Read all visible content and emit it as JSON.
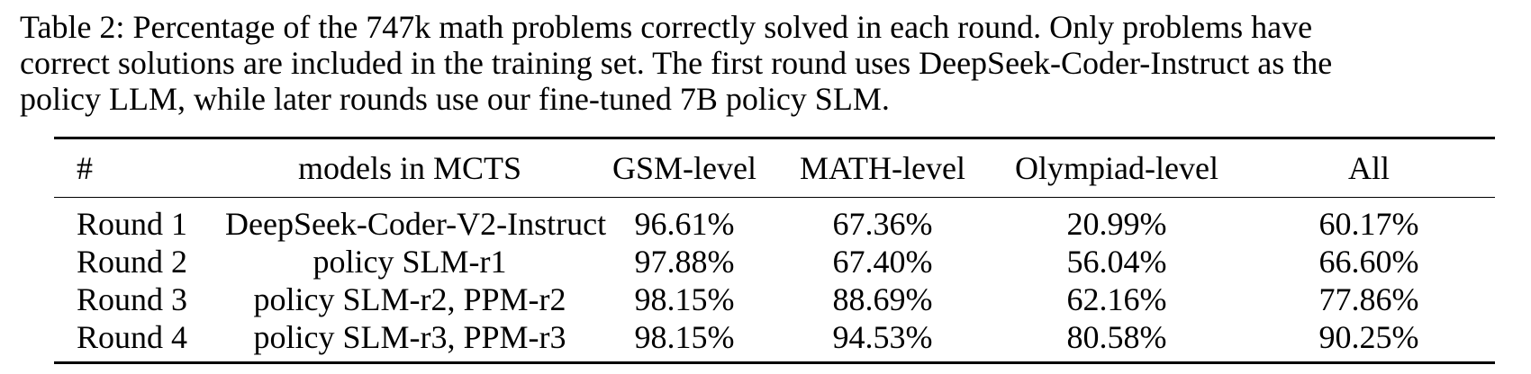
{
  "caption": {
    "lines": [
      "Table 2: Percentage of the 747k math problems correctly solved in each round. Only problems have",
      "correct solutions are included in the training set. The first round uses DeepSeek-Coder-Instruct as the",
      "policy LLM, while later rounds use our fine-tuned 7B policy SLM."
    ]
  },
  "table": {
    "headers": [
      "#",
      "models in MCTS",
      "GSM-level",
      "MATH-level",
      "Olympiad-level",
      "All"
    ],
    "rows": [
      [
        "Round 1",
        "DeepSeek-Coder-V2-Instruct",
        "96.61%",
        "67.36%",
        "20.99%",
        "60.17%"
      ],
      [
        "Round 2",
        "policy SLM-r1",
        "97.88%",
        "67.40%",
        "56.04%",
        "66.60%"
      ],
      [
        "Round 3",
        "policy SLM-r2, PPM-r2",
        "98.15%",
        "88.69%",
        "62.16%",
        "77.86%"
      ],
      [
        "Round 4",
        "policy SLM-r3, PPM-r3",
        "98.15%",
        "94.53%",
        "80.58%",
        "90.25%"
      ]
    ]
  }
}
